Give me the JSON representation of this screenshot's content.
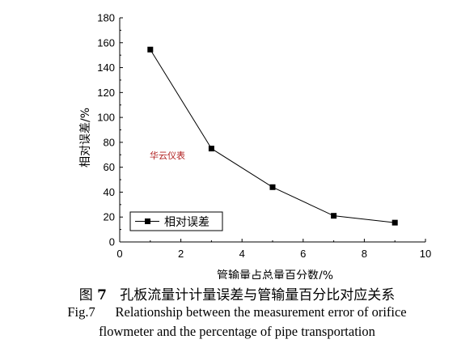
{
  "chart_data": {
    "type": "line",
    "x": [
      1,
      3,
      5,
      7,
      9
    ],
    "series": [
      {
        "name": "相对误差",
        "values": [
          154.5,
          75,
          44,
          21,
          15.5
        ],
        "marker": "square",
        "color": "#000000"
      }
    ],
    "xlabel": "管输量占总量百分数/%",
    "ylabel": "相对误差/%",
    "xlim": [
      0,
      10
    ],
    "ylim": [
      0,
      180
    ],
    "xticks": [
      "0",
      "2",
      "4",
      "6",
      "8",
      "10"
    ],
    "yticks": [
      "0",
      "20",
      "40",
      "60",
      "80",
      "100",
      "120",
      "140",
      "160",
      "180"
    ],
    "legend_position": "bottom-left",
    "grid": false,
    "annotation": "华云仪表",
    "annotation_color": "#b22222"
  },
  "caption": {
    "zh_prefix": "图",
    "zh_number": "7",
    "zh_text": "孔板流量计计量误差与管输量百分比对应关系",
    "en_line1_prefix": "Fig.7",
    "en_line1_text": "Relationship between the measurement error of orifice",
    "en_line2": "flowmeter and the percentage of pipe transportation"
  }
}
